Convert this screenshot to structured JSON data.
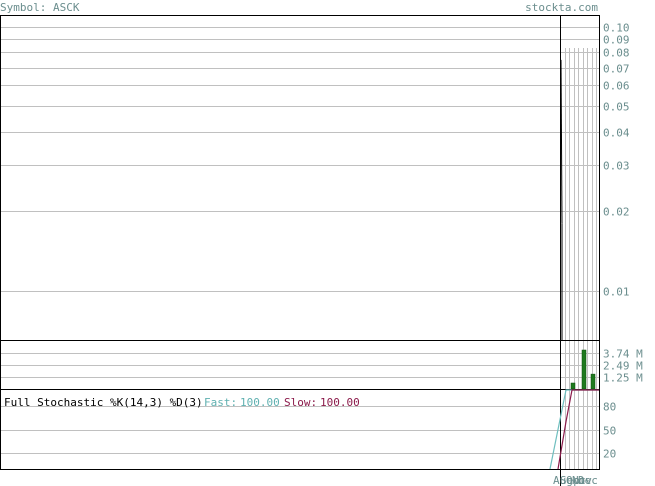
{
  "header": {
    "symbol_label": "Symbol: ASCK",
    "brand": "stockta.com"
  },
  "colors": {
    "text_gray": "#6b8e8e",
    "grid": "#c0c0c0",
    "axis": "#000000",
    "volume_bar": "#1f7a1f",
    "fast_line": "#6fbfbf",
    "slow_line": "#8b1a4a"
  },
  "indicator": {
    "title": "Full Stochastic %K(14,3) %D(3)",
    "fast_label": "Fast:",
    "fast_value": "100.00",
    "slow_label": "Slow:",
    "slow_value": "100.00"
  },
  "chart_data": [
    {
      "type": "line",
      "panel": "price",
      "scale": "log",
      "yticks": [
        "0.10",
        "0.09",
        "0.08",
        "0.07",
        "0.06",
        "0.05",
        "0.04",
        "0.03",
        "0.02",
        "0.01"
      ],
      "ylim": [
        0.0065,
        0.11
      ],
      "series": [
        {
          "x": [
            0,
            1
          ],
          "values": [
            0.075,
            0.018
          ]
        }
      ],
      "grid": true
    },
    {
      "type": "bar",
      "panel": "volume",
      "yticks": [
        "3.74 M",
        "2.49 M",
        "1.25 M"
      ],
      "ytick_values": [
        3.74,
        2.49,
        1.25
      ],
      "ylim": [
        0,
        4.99
      ],
      "values": [
        0.62,
        4.05,
        1.55
      ]
    },
    {
      "type": "line",
      "panel": "stochastic",
      "yticks": [
        "80",
        "50",
        "20"
      ],
      "ytick_values": [
        80,
        50,
        20
      ],
      "ylim": [
        0,
        100
      ],
      "series": [
        {
          "name": "Fast",
          "values": [
            0,
            100,
            100,
            100,
            100,
            100
          ]
        },
        {
          "name": "Slow",
          "values": [
            0,
            60,
            100,
            100,
            100,
            100
          ]
        }
      ],
      "xlabels": [
        "Aug",
        "Sep",
        "Oct",
        "Nov",
        "Dec"
      ]
    }
  ]
}
